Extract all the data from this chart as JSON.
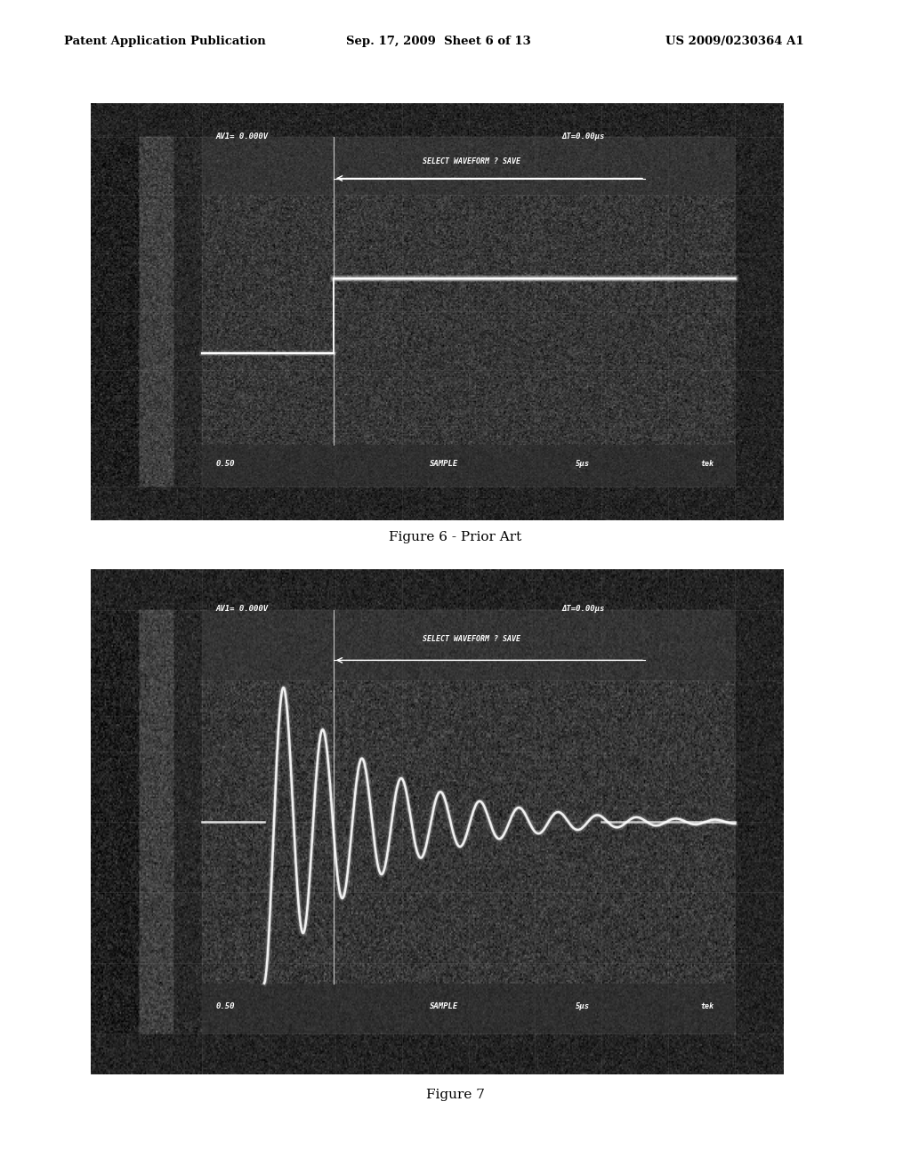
{
  "page_title_left": "Patent Application Publication",
  "page_title_mid": "Sep. 17, 2009  Sheet 6 of 13",
  "page_title_right": "US 2009/0230364 A1",
  "fig6_caption": "Figure 6 - Prior Art",
  "fig7_caption": "Figure 7",
  "osc1": {
    "text_top_left": "AV1= 0.000V",
    "text_top_right": "ΔT=0.00μs",
    "text_mid": "SELECT WAVEFORM ? SAVE",
    "text_bottom_left": "0.50",
    "text_bottom_mid": "SAMPLE",
    "text_bottom_right": "5μs",
    "text_bottom_far_right": "tek"
  },
  "osc2": {
    "text_top_left": "AV1= 0.000V",
    "text_top_right": "ΔT=0.00μs",
    "text_mid": "SELECT WAVEFORM ? SAVE",
    "text_bottom_left": "0.50",
    "text_bottom_mid": "SAMPLE",
    "text_bottom_right": "5μs",
    "text_bottom_far_right": "tek"
  },
  "bg_color": "#ffffff",
  "noise_seed1": 42,
  "noise_seed2": 99
}
